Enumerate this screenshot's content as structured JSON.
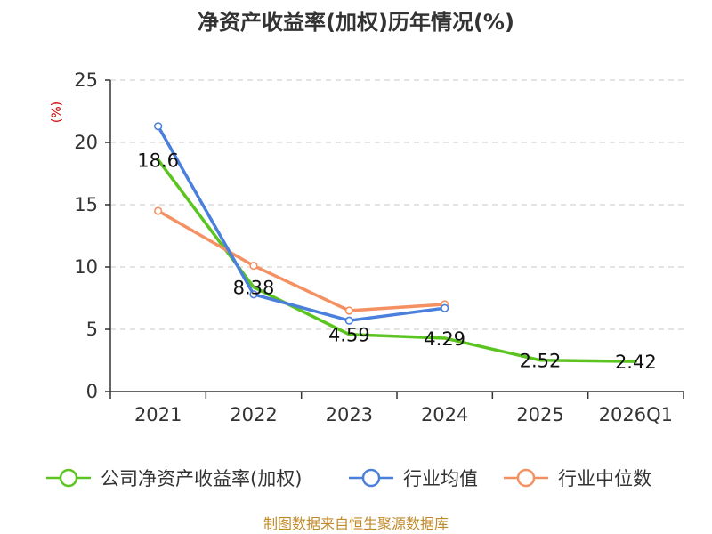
{
  "chart_data": {
    "type": "line",
    "title": "净资产收益率(加权)历年情况(%)",
    "ylabel": "(%)",
    "xlabel": "",
    "categories": [
      "2021",
      "2022",
      "2023",
      "2024",
      "2025",
      "2026Q1"
    ],
    "ylim": [
      0,
      25
    ],
    "yticks": [
      0,
      5,
      10,
      15,
      20,
      25
    ],
    "grid": true,
    "legend_position": "bottom",
    "series": [
      {
        "name": "公司净资产收益率(加权)",
        "color": "#5cc420",
        "values": [
          18.6,
          8.38,
          4.59,
          4.29,
          2.52,
          2.42
        ],
        "data_labels": [
          "18.6",
          "8.38",
          "4.59",
          "4.29",
          "2.52",
          "2.42"
        ]
      },
      {
        "name": "行业均值",
        "color": "#4a7fdc",
        "values": [
          21.3,
          7.8,
          5.7,
          6.7,
          null,
          null
        ]
      },
      {
        "name": "行业中位数",
        "color": "#f59062",
        "values": [
          14.5,
          10.1,
          6.5,
          7.0,
          null,
          null
        ]
      }
    ]
  },
  "footer": {
    "source": "制图数据来自恒生聚源数据库"
  }
}
